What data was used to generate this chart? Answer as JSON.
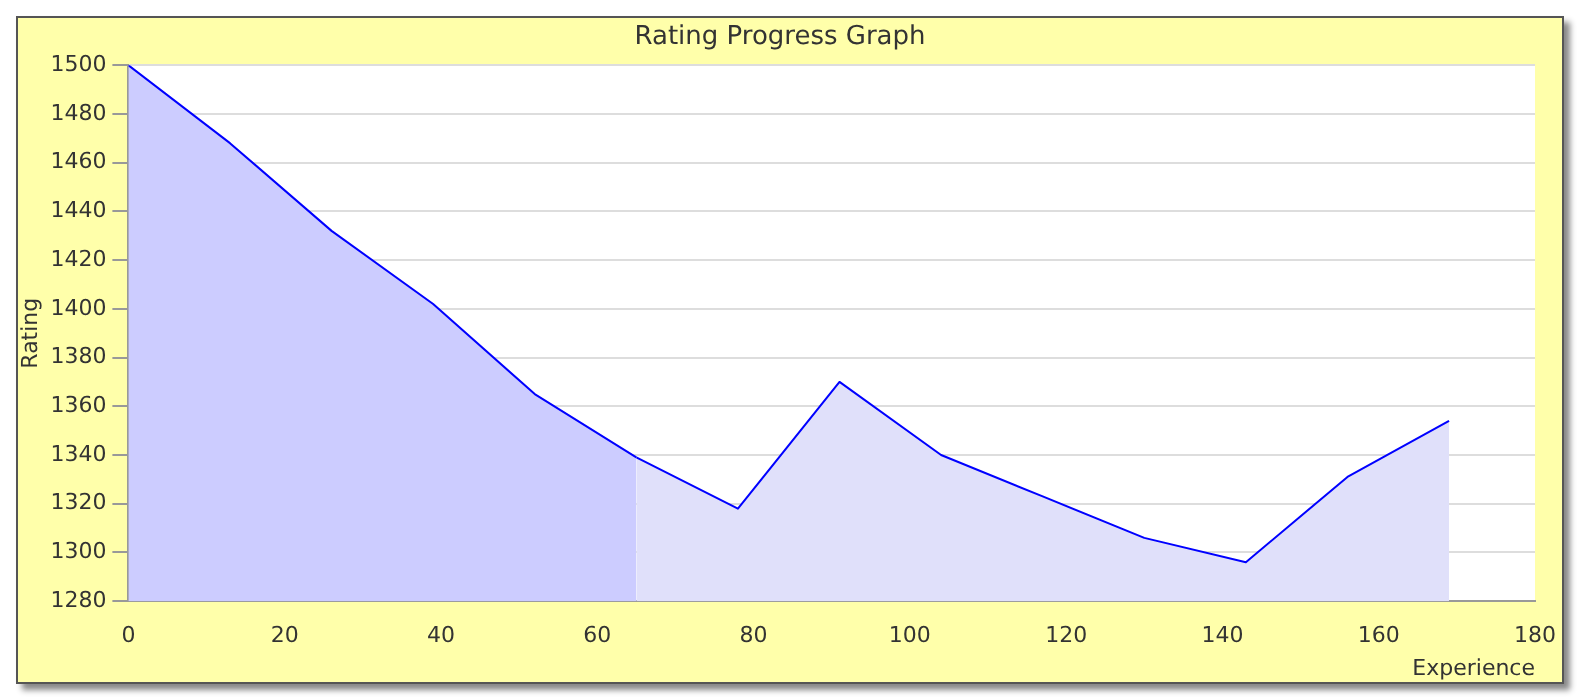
{
  "chart_data": {
    "type": "area",
    "title": "Rating Progress Graph",
    "xlabel": "Experience",
    "ylabel": "Rating",
    "series": [
      {
        "color": "#ccccff",
        "x": [
          0,
          13,
          26,
          39,
          52,
          65
        ],
        "values": [
          1500,
          1468,
          1432,
          1402,
          1365,
          1339
        ]
      },
      {
        "color": "#e0e0fa",
        "x": [
          65,
          78,
          91,
          104,
          117,
          130,
          143,
          156,
          169
        ],
        "values": [
          1339,
          1318,
          1370,
          1340,
          1323,
          1306,
          1296,
          1331,
          1354
        ]
      }
    ],
    "xlim": [
      0,
      180
    ],
    "xticks": [
      0,
      20,
      40,
      60,
      80,
      100,
      120,
      140,
      160,
      180
    ],
    "ylim": [
      1280,
      1500
    ],
    "yticks": [
      1280,
      1300,
      1320,
      1340,
      1360,
      1380,
      1400,
      1420,
      1440,
      1460,
      1480,
      1500
    ],
    "grid": "y",
    "legend": false,
    "marker": "none"
  }
}
